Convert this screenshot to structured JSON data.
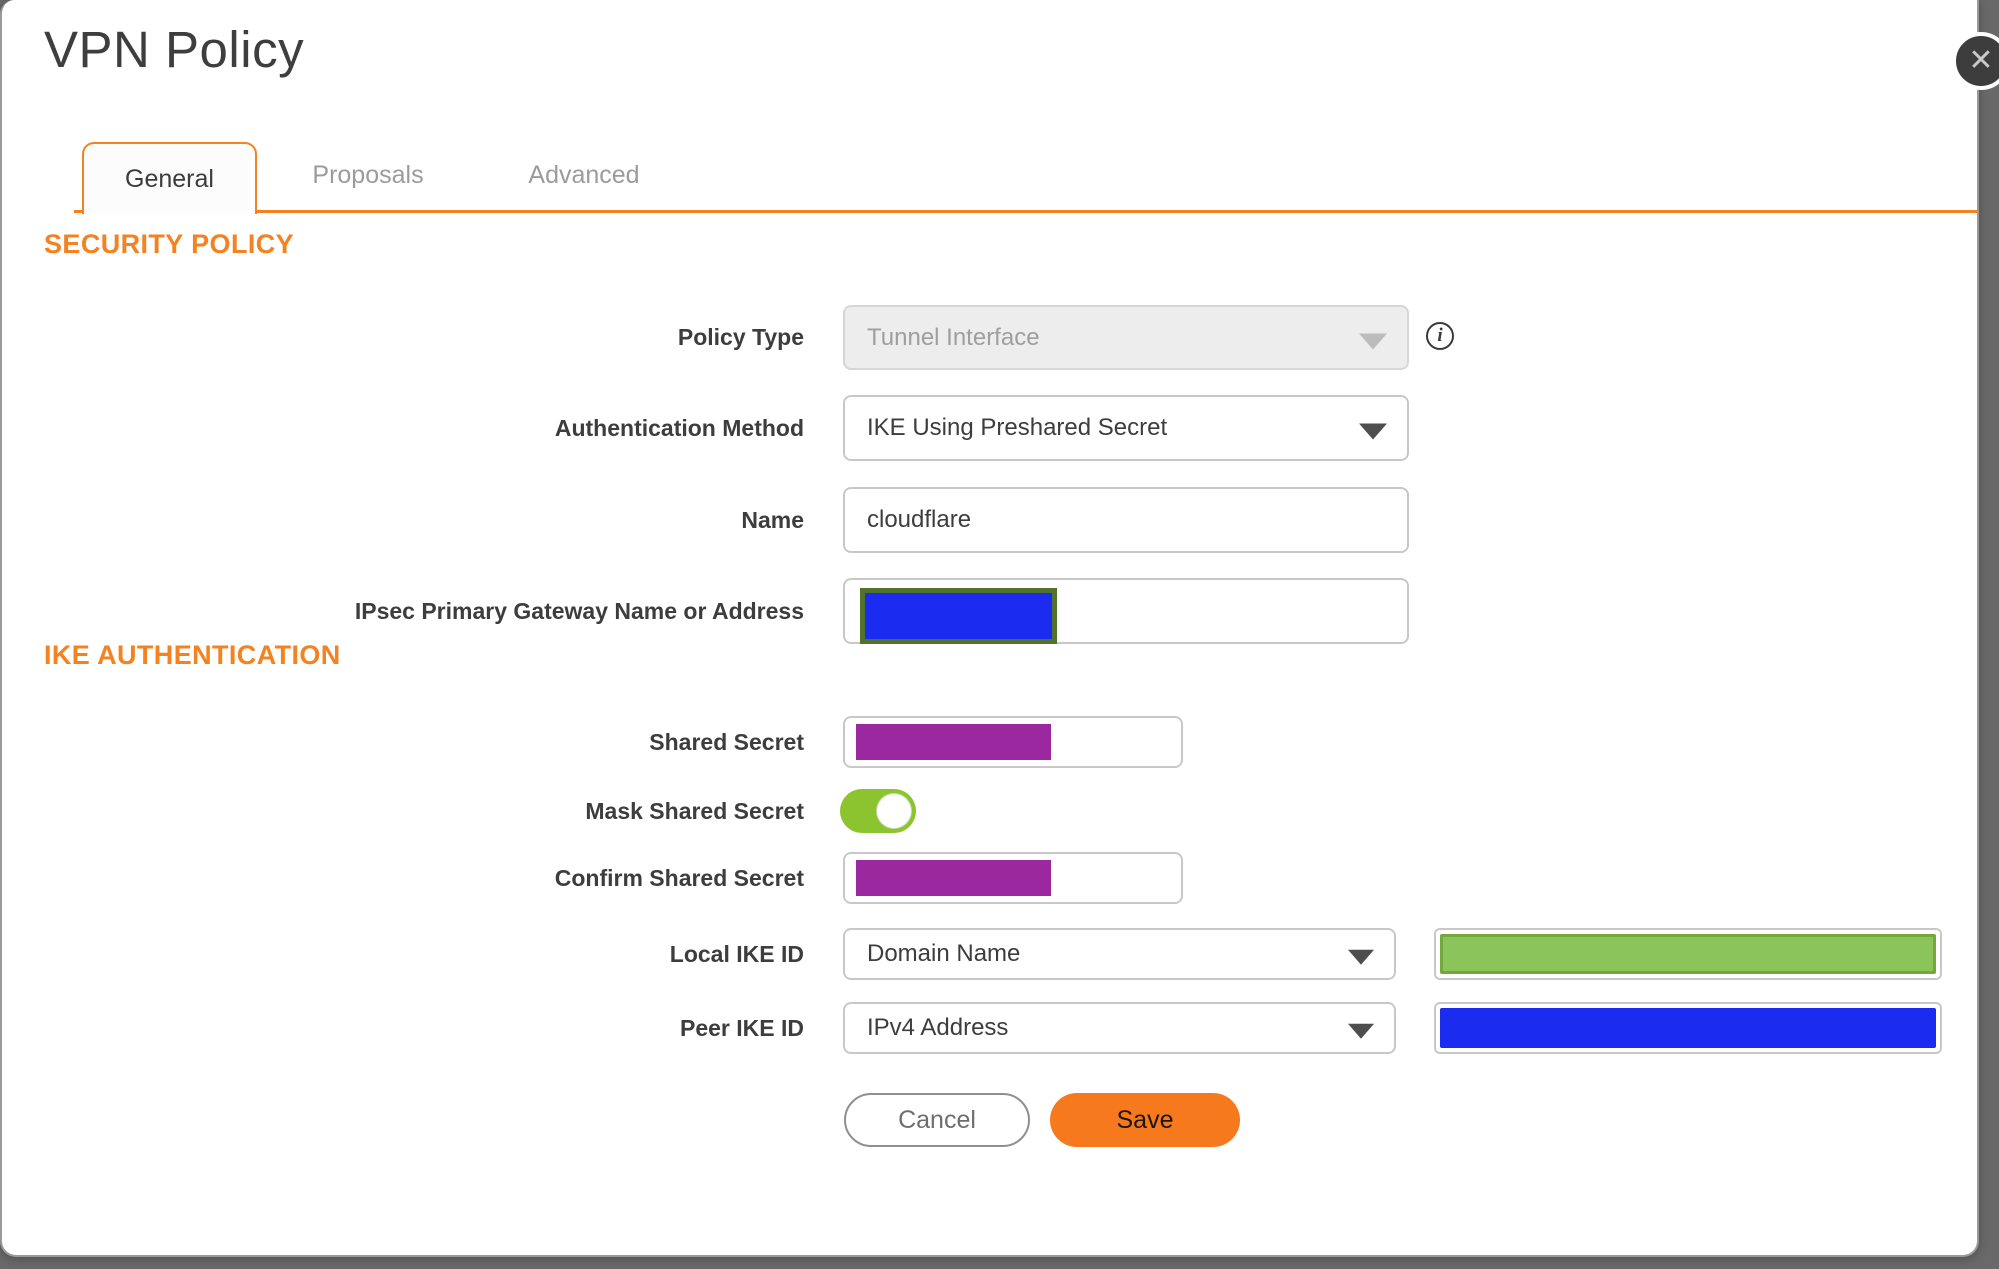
{
  "window": {
    "title": "VPN Policy"
  },
  "icons": {
    "close_glyph": "✕",
    "info_glyph": "i"
  },
  "tabs": [
    {
      "label": "General",
      "active": true
    },
    {
      "label": "Proposals",
      "active": false
    },
    {
      "label": "Advanced",
      "active": false
    }
  ],
  "sections": {
    "security_policy": "SECURITY POLICY",
    "ike_authentication": "IKE AUTHENTICATION"
  },
  "form": {
    "policy_type": {
      "label": "Policy Type",
      "value": "Tunnel Interface",
      "state": "disabled"
    },
    "authentication_method": {
      "label": "Authentication Method",
      "value": "IKE Using Preshared Secret"
    },
    "name": {
      "label": "Name",
      "value": "cloudflare"
    },
    "ipsec_primary_gateway": {
      "label": "IPsec Primary Gateway Name or Address",
      "value": "",
      "note": "value redacted"
    },
    "shared_secret": {
      "label": "Shared Secret",
      "value": "",
      "note": "value redacted"
    },
    "mask_shared_secret": {
      "label": "Mask Shared Secret",
      "enabled": true
    },
    "confirm_shared_secret": {
      "label": "Confirm Shared Secret",
      "value": "",
      "note": "value redacted"
    },
    "local_ike_id": {
      "label": "Local IKE ID",
      "value": "Domain Name",
      "id_value": "",
      "note": "id value redacted"
    },
    "peer_ike_id": {
      "label": "Peer IKE ID",
      "value": "IPv4 Address",
      "id_value": "",
      "note": "id value redacted"
    }
  },
  "buttons": {
    "cancel": "Cancel",
    "save": "Save"
  },
  "colors": {
    "accent_orange": "#F58220",
    "save_orange": "#F7791D",
    "redaction_blue": "#1B2BEF",
    "redaction_blue_border": "#51722B",
    "redaction_purple": "#9C28A0",
    "redaction_green": "#8CC45C",
    "redaction_green_border": "#74A83C",
    "toggle_on_green": "#8CC42F",
    "backdrop_gray": "#696969"
  }
}
